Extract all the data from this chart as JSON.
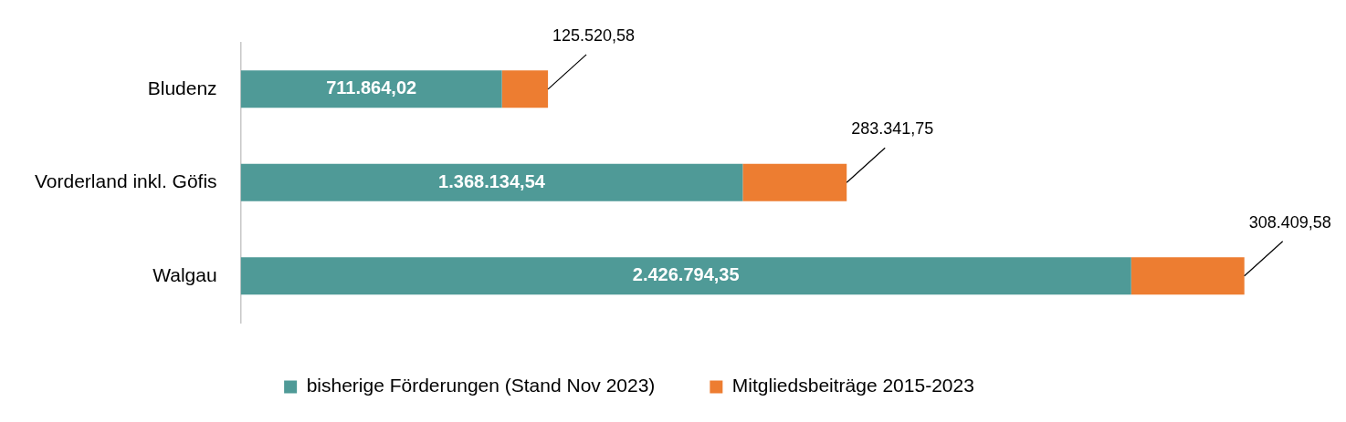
{
  "chart_data": {
    "type": "bar",
    "orientation": "horizontal",
    "stacked": true,
    "categories": [
      "Bludenz",
      "Vorderland inkl. Göfis",
      "Walgau"
    ],
    "series": [
      {
        "name": "bisherige Förderungen (Stand Nov 2023)",
        "color": "#4f9a97",
        "values": [
          711864.02,
          1368134.54,
          2426794.35
        ],
        "value_labels": [
          "711.864,02",
          "1.368.134,54",
          "2.426.794,35"
        ]
      },
      {
        "name": "Mitgliedsbeiträge 2015-2023",
        "color": "#ed7d31",
        "values": [
          125520.58,
          283341.75,
          308409.58
        ],
        "value_labels": [
          "125.520,58",
          "283.341,75",
          "308.409,58"
        ]
      }
    ],
    "legend": "bottom"
  }
}
